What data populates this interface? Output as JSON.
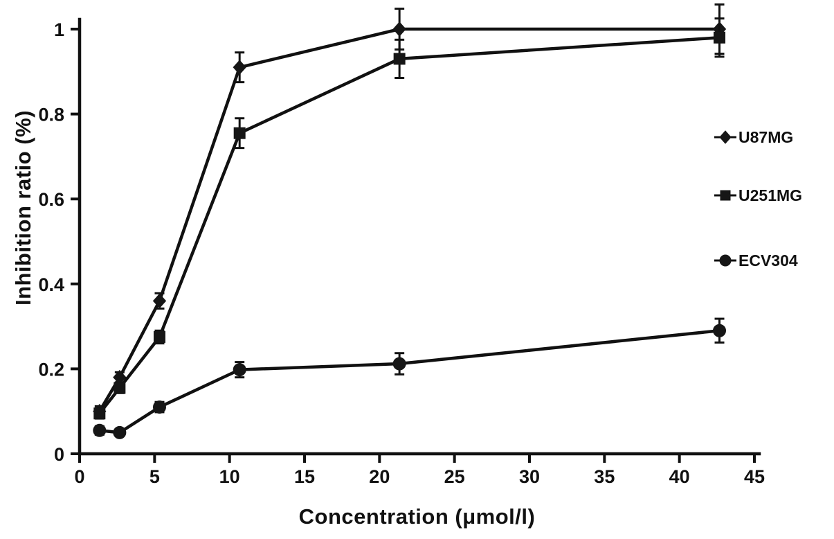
{
  "figure": {
    "background": "#ffffff",
    "line_color": "#111111"
  },
  "chart_data": {
    "type": "line",
    "title": "",
    "xlabel": "Concentration (μmol/l)",
    "ylabel": "Inhibition ratio (%)",
    "xlim": [
      0,
      45
    ],
    "ylim": [
      0,
      1
    ],
    "xticks": [
      0,
      5,
      10,
      15,
      20,
      25,
      30,
      35,
      40,
      45
    ],
    "yticks": [
      0,
      0.2,
      0.4,
      0.6,
      0.8,
      1
    ],
    "ytick_labels": [
      "0",
      "0.2",
      "0.4",
      "0.6",
      "0.8",
      "1"
    ],
    "grid": false,
    "legend_position": "right",
    "x": [
      1.33,
      2.67,
      5.33,
      10.67,
      21.33,
      42.67
    ],
    "series": [
      {
        "name": "U87MG",
        "marker": "diamond",
        "color": "#111111",
        "values": [
          0.1,
          0.18,
          0.36,
          0.91,
          1.0,
          1.0
        ],
        "errors": [
          0.012,
          0.012,
          0.018,
          0.035,
          0.048,
          0.058
        ]
      },
      {
        "name": "U251MG",
        "marker": "square",
        "color": "#111111",
        "values": [
          0.095,
          0.155,
          0.275,
          0.755,
          0.93,
          0.98
        ],
        "errors": [
          0.012,
          0.012,
          0.015,
          0.035,
          0.045,
          0.045
        ]
      },
      {
        "name": "ECV304",
        "marker": "circle",
        "color": "#111111",
        "values": [
          0.055,
          0.05,
          0.11,
          0.198,
          0.212,
          0.29
        ],
        "errors": [
          0.01,
          0.008,
          0.012,
          0.018,
          0.025,
          0.028
        ]
      }
    ]
  }
}
